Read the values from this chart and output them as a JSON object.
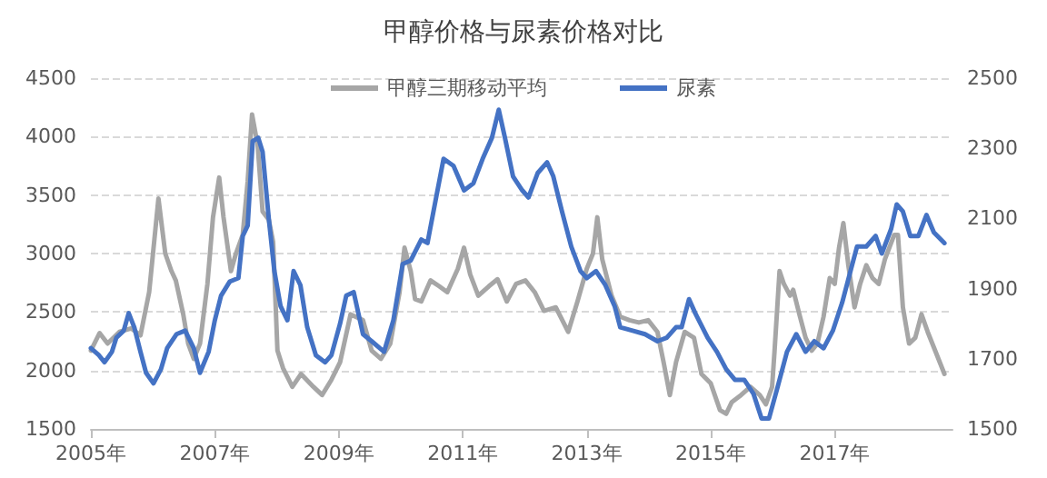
{
  "chart_data": {
    "type": "line",
    "title": "甲醇价格与尿素价格对比",
    "xlim": [
      2005,
      2018.9
    ],
    "xticks": [
      {
        "value": 2005,
        "label": "2005年"
      },
      {
        "value": 2007,
        "label": "2007年"
      },
      {
        "value": 2009,
        "label": "2009年"
      },
      {
        "value": 2011,
        "label": "2011年"
      },
      {
        "value": 2013,
        "label": "2013年"
      },
      {
        "value": 2015,
        "label": "2015年"
      },
      {
        "value": 2017,
        "label": "2017年"
      }
    ],
    "ylim": [
      1500,
      4500
    ],
    "yticks": [
      1500,
      2000,
      2500,
      3000,
      3500,
      4000,
      4500
    ],
    "y2lim": [
      1500,
      2500
    ],
    "y2ticks": [
      1500,
      1700,
      1900,
      2100,
      2300,
      2500
    ],
    "grid": "y",
    "legend": "top",
    "marker": "none",
    "line_style": "solid",
    "series": [
      {
        "name": "甲醇三期移动平均",
        "color": "#a6a6a6",
        "x": [
          2005.0,
          2005.14,
          2005.27,
          2005.46,
          2005.65,
          2005.8,
          2005.94,
          2006.09,
          2006.2,
          2006.3,
          2006.37,
          2006.49,
          2006.57,
          2006.66,
          2006.76,
          2006.88,
          2006.97,
          2007.07,
          2007.14,
          2007.26,
          2007.34,
          2007.45,
          2007.53,
          2007.6,
          2007.69,
          2007.77,
          2007.87,
          2007.94,
          2008.01,
          2008.1,
          2008.25,
          2008.39,
          2008.59,
          2008.73,
          2008.88,
          2009.02,
          2009.19,
          2009.39,
          2009.53,
          2009.68,
          2009.83,
          2009.98,
          2010.06,
          2010.16,
          2010.23,
          2010.33,
          2010.48,
          2010.62,
          2010.75,
          2010.92,
          2011.02,
          2011.12,
          2011.25,
          2011.42,
          2011.56,
          2011.71,
          2011.86,
          2012.01,
          2012.16,
          2012.31,
          2012.5,
          2012.7,
          2012.85,
          2013.0,
          2013.1,
          2013.17,
          2013.25,
          2013.4,
          2013.54,
          2013.69,
          2013.84,
          2013.99,
          2014.14,
          2014.24,
          2014.34,
          2014.44,
          2014.58,
          2014.73,
          2014.85,
          2015.0,
          2015.15,
          2015.25,
          2015.34,
          2015.49,
          2015.64,
          2015.79,
          2015.89,
          2015.99,
          2016.03,
          2016.11,
          2016.18,
          2016.28,
          2016.33,
          2016.43,
          2016.53,
          2016.63,
          2016.72,
          2016.82,
          2016.92,
          2017.0,
          2017.07,
          2017.14,
          2017.22,
          2017.32,
          2017.41,
          2017.51,
          2017.61,
          2017.71,
          2017.81,
          2017.96,
          2018.02,
          2018.1,
          2018.2,
          2018.3,
          2018.4,
          2018.5,
          2018.62,
          2018.77
        ],
        "values": [
          2170,
          2320,
          2230,
          2330,
          2360,
          2300,
          2670,
          3470,
          3000,
          2850,
          2770,
          2480,
          2230,
          2100,
          2230,
          2740,
          3310,
          3650,
          3310,
          2850,
          3000,
          3160,
          3620,
          4190,
          3930,
          3360,
          3290,
          3100,
          2170,
          2020,
          1860,
          1970,
          1860,
          1790,
          1920,
          2070,
          2480,
          2430,
          2170,
          2100,
          2230,
          2670,
          3050,
          2850,
          2610,
          2590,
          2770,
          2720,
          2670,
          2870,
          3050,
          2820,
          2640,
          2720,
          2780,
          2590,
          2740,
          2770,
          2670,
          2510,
          2540,
          2330,
          2590,
          2870,
          3000,
          3310,
          2950,
          2640,
          2460,
          2430,
          2410,
          2430,
          2330,
          2070,
          1790,
          2070,
          2330,
          2280,
          1970,
          1890,
          1660,
          1630,
          1730,
          1790,
          1860,
          1790,
          1710,
          1860,
          2170,
          2850,
          2740,
          2640,
          2690,
          2480,
          2280,
          2170,
          2230,
          2460,
          2790,
          2740,
          3050,
          3260,
          2900,
          2540,
          2740,
          2900,
          2790,
          2740,
          2950,
          3160,
          3160,
          2540,
          2230,
          2280,
          2480,
          2330,
          2170,
          1970
        ]
      },
      {
        "name": "尿素",
        "color": "#4472c4",
        "axis": "y2",
        "x": [
          2005.0,
          2005.13,
          2005.22,
          2005.34,
          2005.41,
          2005.53,
          2005.61,
          2005.7,
          2005.8,
          2005.89,
          2006.01,
          2006.13,
          2006.23,
          2006.38,
          2006.52,
          2006.66,
          2006.76,
          2006.9,
          2007.0,
          2007.1,
          2007.24,
          2007.38,
          2007.45,
          2007.53,
          2007.61,
          2007.7,
          2007.77,
          2007.87,
          2007.96,
          2008.06,
          2008.17,
          2008.27,
          2008.38,
          2008.49,
          2008.63,
          2008.78,
          2008.88,
          2009.02,
          2009.12,
          2009.24,
          2009.39,
          2009.53,
          2009.73,
          2009.88,
          2010.03,
          2010.16,
          2010.33,
          2010.43,
          2010.57,
          2010.69,
          2010.85,
          2011.02,
          2011.17,
          2011.32,
          2011.47,
          2011.58,
          2011.68,
          2011.81,
          2011.96,
          2012.06,
          2012.21,
          2012.36,
          2012.46,
          2012.6,
          2012.75,
          2012.9,
          2013.0,
          2013.15,
          2013.3,
          2013.45,
          2013.54,
          2013.74,
          2013.94,
          2014.14,
          2014.29,
          2014.44,
          2014.53,
          2014.65,
          2014.75,
          2014.95,
          2015.1,
          2015.25,
          2015.39,
          2015.54,
          2015.69,
          2015.82,
          2015.94,
          2016.08,
          2016.23,
          2016.38,
          2016.53,
          2016.67,
          2016.82,
          2016.97,
          2017.12,
          2017.27,
          2017.36,
          2017.51,
          2017.66,
          2017.76,
          2017.91,
          2018.0,
          2018.1,
          2018.22,
          2018.35,
          2018.48,
          2018.6,
          2018.77
        ],
        "values": [
          1730,
          1710,
          1690,
          1720,
          1760,
          1780,
          1830,
          1790,
          1720,
          1660,
          1630,
          1670,
          1730,
          1770,
          1780,
          1730,
          1660,
          1720,
          1810,
          1880,
          1920,
          1930,
          2050,
          2080,
          2320,
          2330,
          2290,
          2100,
          1950,
          1850,
          1810,
          1950,
          1910,
          1790,
          1710,
          1690,
          1710,
          1800,
          1880,
          1890,
          1770,
          1750,
          1720,
          1810,
          1970,
          1980,
          2040,
          2030,
          2160,
          2270,
          2250,
          2180,
          2200,
          2270,
          2330,
          2410,
          2330,
          2220,
          2180,
          2160,
          2230,
          2260,
          2220,
          2120,
          2020,
          1950,
          1930,
          1950,
          1910,
          1850,
          1790,
          1780,
          1770,
          1750,
          1760,
          1790,
          1790,
          1870,
          1830,
          1760,
          1720,
          1670,
          1640,
          1640,
          1600,
          1530,
          1530,
          1620,
          1720,
          1770,
          1720,
          1750,
          1730,
          1780,
          1860,
          1960,
          2020,
          2020,
          2050,
          2000,
          2070,
          2140,
          2120,
          2050,
          2050,
          2110,
          2060,
          2030
        ]
      }
    ]
  }
}
